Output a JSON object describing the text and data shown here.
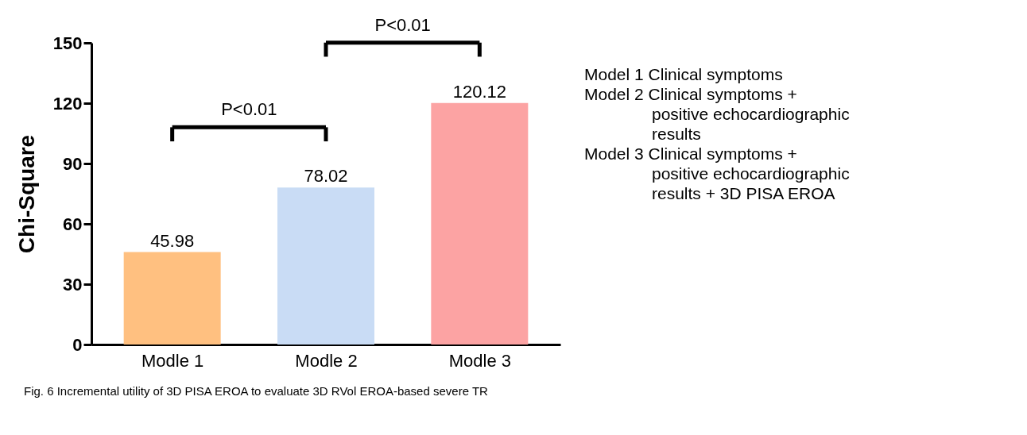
{
  "chart_data": {
    "type": "bar",
    "categories": [
      "Modle 1",
      "Modle 2",
      "Modle 3"
    ],
    "values": [
      45.98,
      78.02,
      120.12
    ],
    "colors": [
      "#ffc080",
      "#c9dcf5",
      "#fca3a3"
    ],
    "ylabel": "Chi-Square",
    "ylim": [
      0,
      150
    ],
    "yticks": [
      0,
      30,
      60,
      90,
      120,
      150
    ],
    "data_labels": true,
    "grid": false,
    "annotations": [
      "P<0.01",
      "P<0.01",
      "Model 1 Clinical symptoms",
      "Model 2 Clinical symptoms +\npositive echocardiographic\nresults",
      "Model 3 Clinical symptoms +\npositive echocardiographic\nresults + 3D PISA EROA",
      "Fig. 6 Incremental utility of 3D PISA EROA to evaluate 3D RVol EROA-based severe TR"
    ]
  }
}
